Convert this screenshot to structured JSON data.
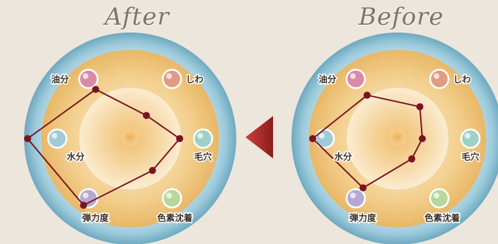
{
  "panels": [
    {
      "title": "After",
      "labels": {
        "oil": "油分",
        "wrinkle": "しわ",
        "pore": "毛穴",
        "pigment": "色素沈着",
        "elasticity": "弾力度",
        "moisture": "水分"
      }
    },
    {
      "title": "Before",
      "labels": {
        "oil": "油分",
        "wrinkle": "しわ",
        "pore": "毛穴",
        "pigment": "色素沈着",
        "elasticity": "弾力度",
        "moisture": "水分"
      }
    }
  ],
  "chart_data": [
    {
      "type": "radar",
      "title": "After",
      "axes": [
        "油分",
        "しわ",
        "毛穴",
        "色素沈着",
        "弾力度",
        "水分"
      ],
      "axis_colors": [
        "#d98aa6",
        "#e19a86",
        "#9fd0c6",
        "#b7d79c",
        "#b7a8d2",
        "#9fcbd8"
      ],
      "values": [
        0.85,
        0.4,
        0.7,
        0.55,
        1.15,
        1.45
      ],
      "range": [
        0,
        1.5
      ],
      "line_color": "#7a1420"
    },
    {
      "type": "radar",
      "title": "Before",
      "axes": [
        "油分",
        "しわ",
        "毛穴",
        "色素沈着",
        "弾力度",
        "水分"
      ],
      "axis_colors": [
        "#d98aa6",
        "#e19a86",
        "#9fd0c6",
        "#b7d79c",
        "#b7a8d2",
        "#9fcbd8"
      ],
      "values": [
        0.75,
        0.55,
        0.35,
        0.35,
        0.85,
        1.2
      ],
      "range": [
        0,
        1.5
      ],
      "line_color": "#7a1420"
    }
  ],
  "arrow_color": "#a52a2a"
}
